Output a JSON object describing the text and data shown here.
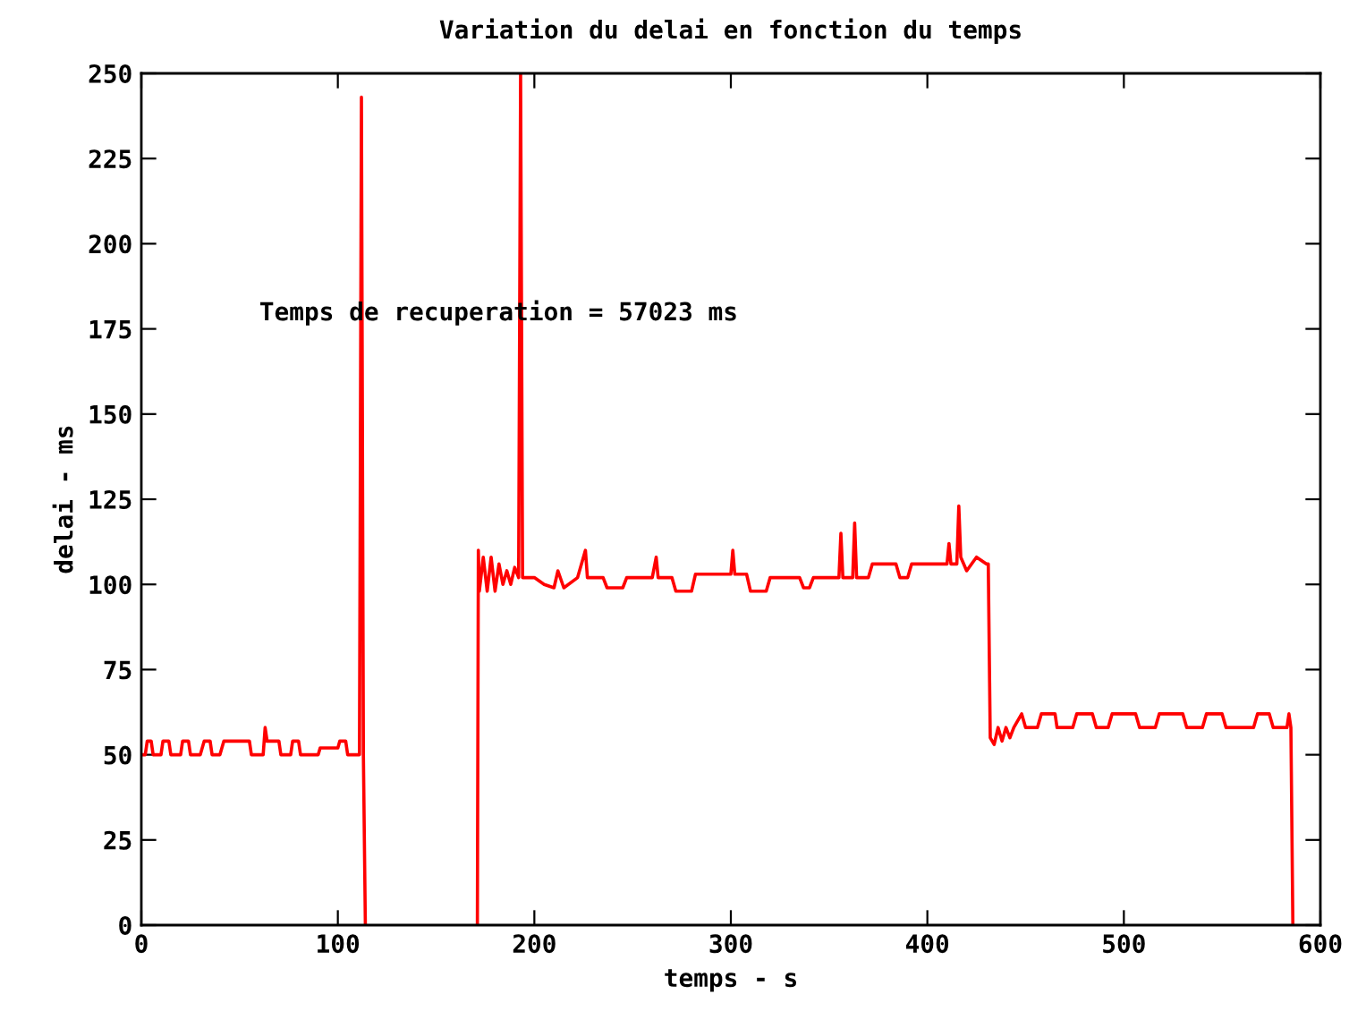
{
  "chart_data": {
    "type": "line",
    "title": "Variation du delai en fonction du temps",
    "xlabel": "temps - s",
    "ylabel": "delai - ms",
    "annotations": [
      "Temps de recuperation = 57023 ms"
    ],
    "series": [
      {
        "color": "#ff0000",
        "x": [
          0,
          2,
          3,
          5,
          6,
          10,
          11,
          14,
          15,
          20,
          21,
          24,
          25,
          30,
          32,
          35,
          36,
          40,
          42,
          55,
          56,
          62,
          63,
          64,
          70,
          71,
          76,
          77,
          80,
          81,
          90,
          91,
          100,
          101,
          104,
          105,
          111,
          112,
          113,
          114,
          142,
          171,
          171.5,
          172,
          174,
          176,
          178,
          180,
          182,
          184,
          186,
          188,
          190,
          192,
          193,
          194,
          200,
          205,
          210,
          212,
          215,
          222,
          226,
          227,
          235,
          237,
          245,
          247,
          260,
          262,
          263,
          270,
          272,
          280,
          282,
          300,
          301,
          302,
          308,
          310,
          318,
          320,
          335,
          337,
          340,
          342,
          355,
          356,
          357,
          362,
          363,
          364,
          370,
          372,
          384,
          386,
          390,
          392,
          410,
          411,
          412,
          415,
          416,
          417,
          420,
          425,
          430,
          431,
          432,
          434,
          436,
          438,
          440,
          442,
          444,
          448,
          450,
          456,
          458,
          465,
          466,
          474,
          476,
          484,
          486,
          492,
          494,
          506,
          508,
          516,
          518,
          530,
          532,
          540,
          542,
          550,
          552,
          566,
          568,
          574,
          576,
          583,
          584,
          585,
          586
        ],
        "values": [
          50,
          50,
          54,
          54,
          50,
          50,
          54,
          54,
          50,
          50,
          54,
          54,
          50,
          50,
          54,
          54,
          50,
          50,
          54,
          54,
          50,
          50,
          58,
          54,
          54,
          50,
          50,
          54,
          54,
          50,
          50,
          52,
          52,
          54,
          54,
          50,
          50,
          243,
          50,
          0,
          null,
          0,
          110,
          98,
          108,
          98,
          108,
          98,
          106,
          100,
          104,
          100,
          105,
          102,
          250,
          102,
          102,
          100,
          99,
          104,
          99,
          102,
          110,
          102,
          102,
          99,
          99,
          102,
          102,
          108,
          102,
          102,
          98,
          98,
          103,
          103,
          110,
          103,
          103,
          98,
          98,
          102,
          102,
          99,
          99,
          102,
          102,
          115,
          102,
          102,
          118,
          102,
          102,
          106,
          106,
          102,
          102,
          106,
          106,
          112,
          106,
          106,
          123,
          108,
          104,
          108,
          106,
          106,
          55,
          53,
          58,
          54,
          58,
          55,
          58,
          62,
          58,
          58,
          62,
          62,
          58,
          58,
          62,
          62,
          58,
          58,
          62,
          62,
          58,
          58,
          62,
          62,
          58,
          58,
          62,
          62,
          58,
          58,
          62,
          62,
          58,
          58,
          62,
          58,
          0
        ]
      }
    ],
    "xlim": [
      0,
      600
    ],
    "xticks": [
      0,
      100,
      200,
      300,
      400,
      500,
      600
    ],
    "ylim": [
      0,
      250
    ],
    "yticks": [
      0,
      25,
      50,
      75,
      100,
      125,
      150,
      175,
      200,
      225,
      250
    ],
    "grid": false,
    "legend": false,
    "marker": "none",
    "line_style": "solid"
  }
}
